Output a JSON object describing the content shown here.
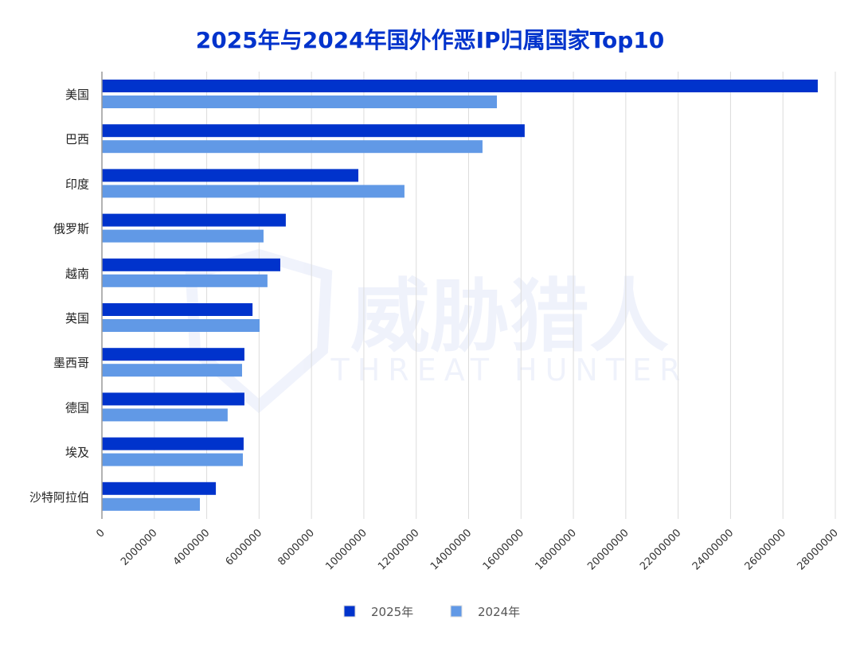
{
  "chart_data": {
    "type": "bar",
    "orientation": "horizontal",
    "title": "2025年与2024年国外作恶IP归属国家Top10",
    "categories": [
      "美国",
      "巴西",
      "印度",
      "俄罗斯",
      "越南",
      "英国",
      "墨西哥",
      "德国",
      "埃及",
      "沙特阿拉伯"
    ],
    "series": [
      {
        "name": "2025年",
        "color": "#0033cc",
        "values": [
          27330000,
          16140000,
          9790000,
          7020000,
          6810000,
          5750000,
          5440000,
          5440000,
          5410000,
          4350000
        ]
      },
      {
        "name": "2024年",
        "color": "#6199e6",
        "values": [
          15080000,
          14530000,
          11550000,
          6170000,
          6320000,
          6020000,
          5350000,
          4800000,
          5380000,
          3740000
        ]
      }
    ],
    "xlim": [
      0,
      28000000
    ],
    "xticks": [
      "0",
      "2000000",
      "4000000",
      "6000000",
      "8000000",
      "10000000",
      "12000000",
      "14000000",
      "16000000",
      "18000000",
      "20000000",
      "22000000",
      "24000000",
      "26000000",
      "28000000"
    ],
    "xlabel": "",
    "ylabel": "",
    "grid": true,
    "legend_position": "bottom",
    "watermark": {
      "cn": "威胁猎人",
      "en": "THREAT HUNTER"
    }
  }
}
